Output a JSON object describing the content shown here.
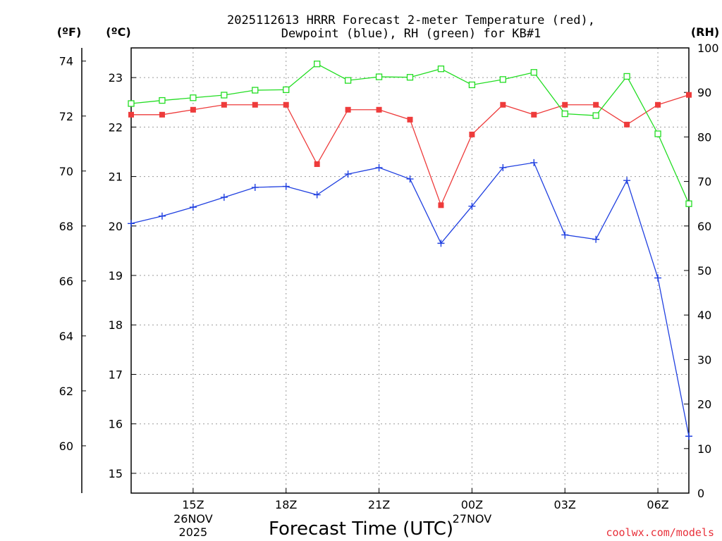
{
  "chart_data": {
    "type": "line",
    "title_lines": [
      "2025112613 HRRR Forecast 2-meter Temperature (red),",
      "Dewpoint (blue), RH (green) for KB#1"
    ],
    "xlabel": "Forecast Time (UTC)",
    "credit": "coolwx.com/models",
    "credit_color": "#e8303a",
    "units": {
      "fahrenheit": "(ºF)",
      "celsius": "(ºC)",
      "rh": "(RH)"
    },
    "x_range": [
      13,
      31
    ],
    "x_ticks": [
      {
        "x": 15,
        "label": "15Z"
      },
      {
        "x": 18,
        "label": "18Z"
      },
      {
        "x": 21,
        "label": "21Z"
      },
      {
        "x": 24,
        "label": "00Z"
      },
      {
        "x": 27,
        "label": "03Z"
      },
      {
        "x": 30,
        "label": "06Z"
      }
    ],
    "date_labels": [
      {
        "x": 15,
        "lines": [
          "26NOV",
          "2025"
        ]
      },
      {
        "x": 24,
        "lines": [
          "27NOV"
        ]
      }
    ],
    "celsius_axis": {
      "range": [
        14.6,
        23.6
      ],
      "ticks": [
        15,
        16,
        17,
        18,
        19,
        20,
        21,
        22,
        23
      ]
    },
    "fahrenheit_axis": {
      "range": [
        58.28,
        74.48
      ],
      "ticks": [
        60,
        62,
        64,
        66,
        68,
        70,
        72,
        74
      ]
    },
    "rh_axis": {
      "range": [
        0,
        100
      ],
      "ticks": [
        0,
        10,
        20,
        30,
        40,
        50,
        60,
        70,
        80,
        90,
        100
      ]
    },
    "series": [
      {
        "name": "Temperature",
        "axis": "celsius",
        "color": "#ee3b3b",
        "marker": "filled-square",
        "x": [
          13,
          14,
          15,
          16,
          17,
          18,
          19,
          20,
          21,
          22,
          23,
          24,
          25,
          26,
          27,
          28,
          29,
          30,
          31
        ],
        "values": [
          22.25,
          22.25,
          22.35,
          22.45,
          22.45,
          22.45,
          21.25,
          22.35,
          22.35,
          22.15,
          20.42,
          21.85,
          22.45,
          22.25,
          22.45,
          22.45,
          22.05,
          22.45,
          22.65
        ]
      },
      {
        "name": "Dewpoint",
        "axis": "celsius",
        "color": "#2040e0",
        "marker": "plus",
        "x": [
          13,
          14,
          15,
          16,
          17,
          18,
          19,
          20,
          21,
          22,
          23,
          24,
          25,
          26,
          27,
          28,
          29,
          30,
          31
        ],
        "values": [
          20.05,
          20.2,
          20.38,
          20.58,
          20.78,
          20.8,
          20.63,
          21.05,
          21.18,
          20.95,
          19.65,
          20.4,
          21.18,
          21.28,
          19.82,
          19.73,
          20.92,
          18.95,
          15.75
        ]
      },
      {
        "name": "RH",
        "axis": "rh",
        "color": "#22dd22",
        "marker": "open-square",
        "x": [
          13,
          14,
          15,
          16,
          17,
          18,
          19,
          20,
          21,
          22,
          23,
          24,
          25,
          26,
          27,
          28,
          29,
          30,
          31
        ],
        "values": [
          87.5,
          88.2,
          88.8,
          89.4,
          90.5,
          90.6,
          96.4,
          92.7,
          93.5,
          93.4,
          95.3,
          91.7,
          92.9,
          94.5,
          85.2,
          84.8,
          93.6,
          80.7,
          65.0
        ]
      }
    ]
  }
}
